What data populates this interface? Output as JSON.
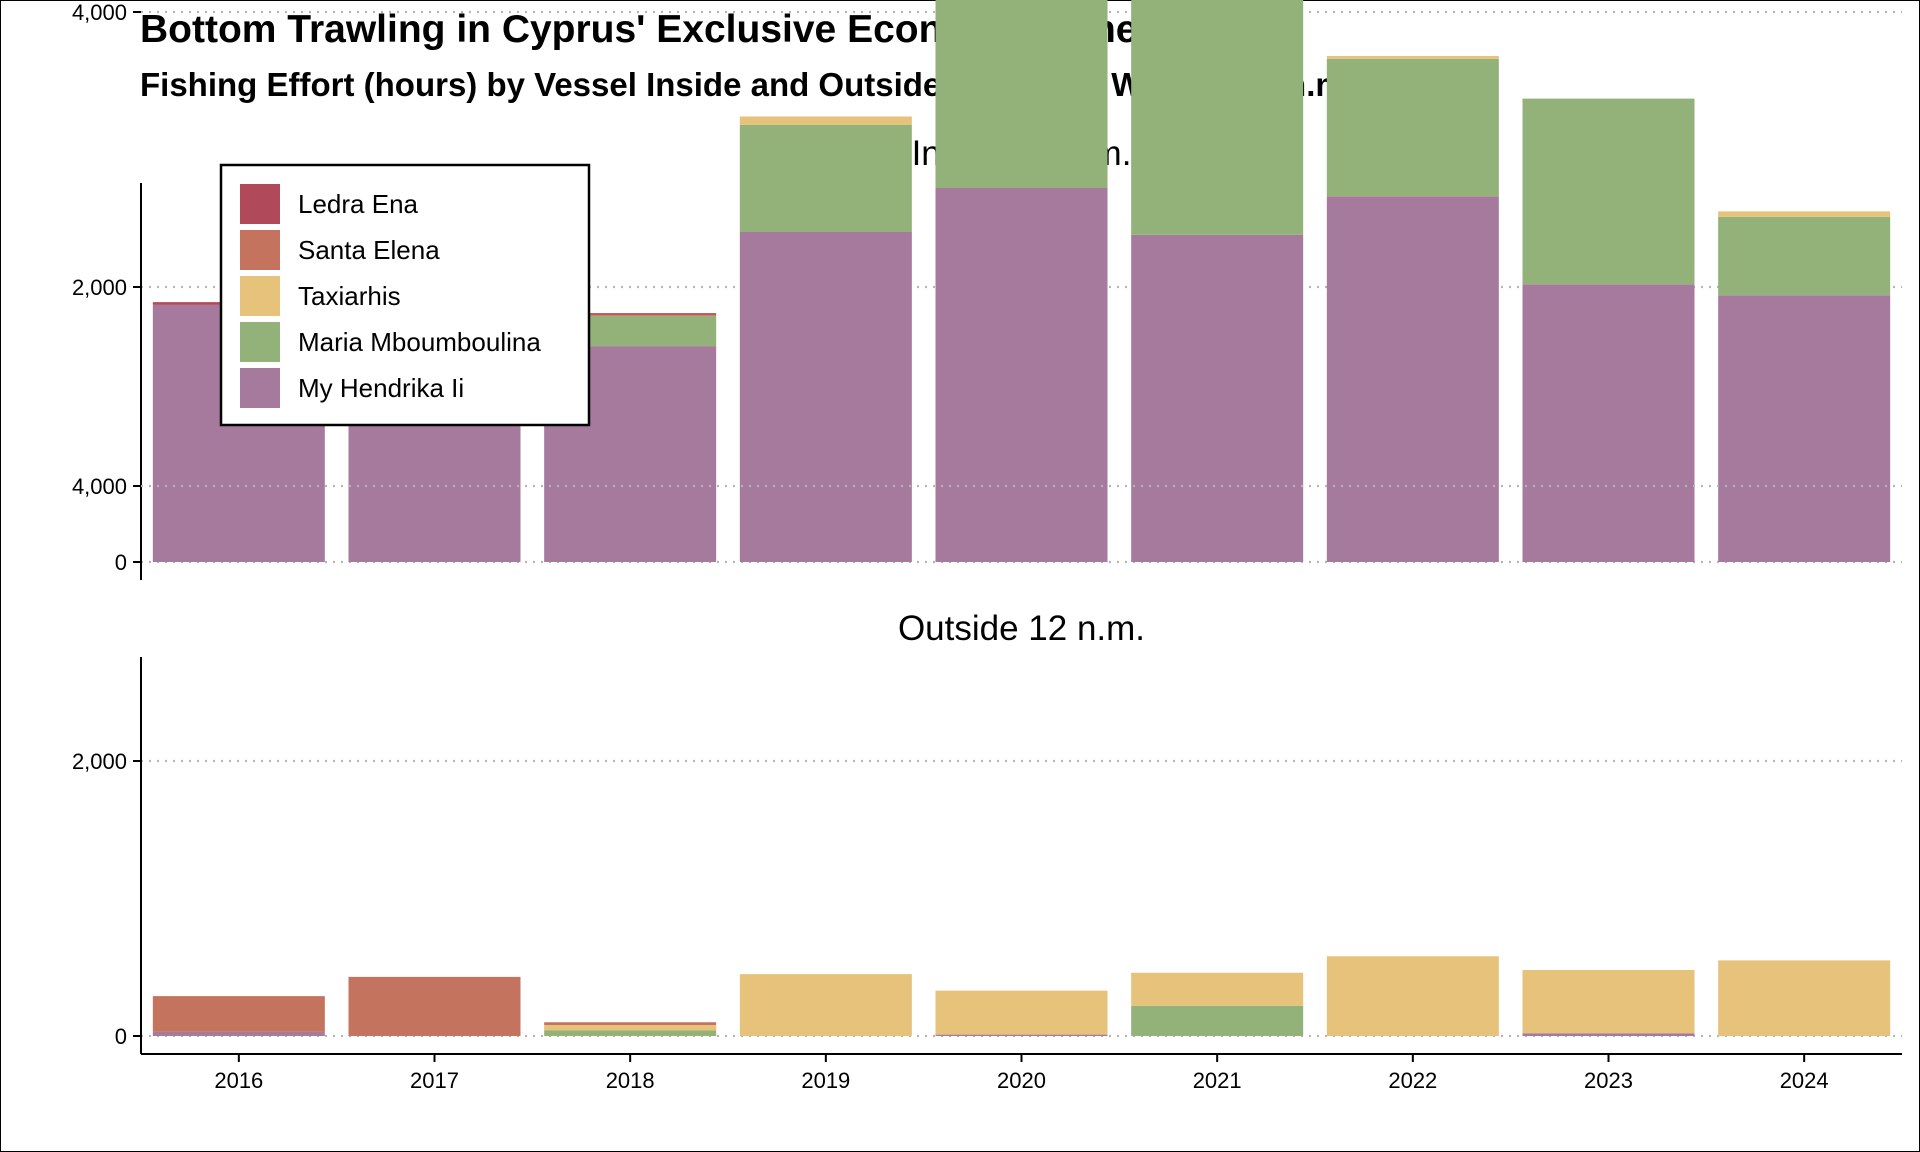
{
  "title": "Bottom Trawling in Cyprus' Exclusive Economic Zone",
  "subtitle": "Fishing Effort (hours) by Vessel Inside and Outside Territorial Waters (12 n.m.)",
  "chart_data": {
    "type": "bar",
    "stacked": true,
    "categories": [
      "2016",
      "2017",
      "2018",
      "2019",
      "2020",
      "2021",
      "2022",
      "2023",
      "2024"
    ],
    "ylim": [
      0,
      5500
    ],
    "yticks": [
      0,
      2000,
      4000
    ],
    "ytick_labels": [
      "0",
      "2,000",
      "4,000"
    ],
    "grid": "horizontal dotted",
    "legend_position": "top-left",
    "legend": [
      "Ledra Ena",
      "Santa Elena",
      "Taxiarhis",
      "Maria Mboumboulina",
      "My Hendrika Ii"
    ],
    "colors": {
      "Ledra Ena": "#b04a5a",
      "Santa Elena": "#c4735f",
      "Taxiarhis": "#e6c27a",
      "Maria Mboumboulina": "#93b279",
      "My Hendrika Ii": "#a57a9c"
    },
    "stack_order": [
      "My Hendrika Ii",
      "Maria Mboumboulina",
      "Taxiarhis",
      "Santa Elena",
      "Ledra Ena"
    ],
    "panels": [
      {
        "title": "Inside 12 n.m.",
        "series": [
          {
            "name": "My Hendrika Ii",
            "values": [
              1870,
              1830,
              1570,
              2400,
              2720,
              2380,
              2660,
              2020,
              1940
            ]
          },
          {
            "name": "Maria Mboumboulina",
            "values": [
              0,
              0,
              220,
              780,
              2500,
              1720,
              1000,
              1350,
              570
            ]
          },
          {
            "name": "Taxiarhis",
            "values": [
              0,
              0,
              0,
              60,
              50,
              60,
              20,
              0,
              40
            ]
          },
          {
            "name": "Santa Elena",
            "values": [
              0,
              0,
              10,
              0,
              0,
              0,
              0,
              0,
              0
            ]
          },
          {
            "name": "Ledra Ena",
            "values": [
              20,
              0,
              10,
              0,
              0,
              0,
              0,
              0,
              0
            ]
          }
        ]
      },
      {
        "title": "Outside 12 n.m.",
        "series": [
          {
            "name": "My Hendrika Ii",
            "values": [
              30,
              0,
              0,
              0,
              10,
              0,
              0,
              20,
              0
            ]
          },
          {
            "name": "Maria Mboumboulina",
            "values": [
              0,
              0,
              40,
              0,
              0,
              220,
              0,
              0,
              0
            ]
          },
          {
            "name": "Taxiarhis",
            "values": [
              0,
              0,
              40,
              450,
              320,
              240,
              580,
              460,
              550
            ]
          },
          {
            "name": "Santa Elena",
            "values": [
              260,
              430,
              20,
              0,
              0,
              0,
              0,
              0,
              0
            ]
          },
          {
            "name": "Ledra Ena",
            "values": [
              0,
              0,
              0,
              0,
              0,
              0,
              0,
              0,
              0
            ]
          }
        ]
      }
    ]
  }
}
